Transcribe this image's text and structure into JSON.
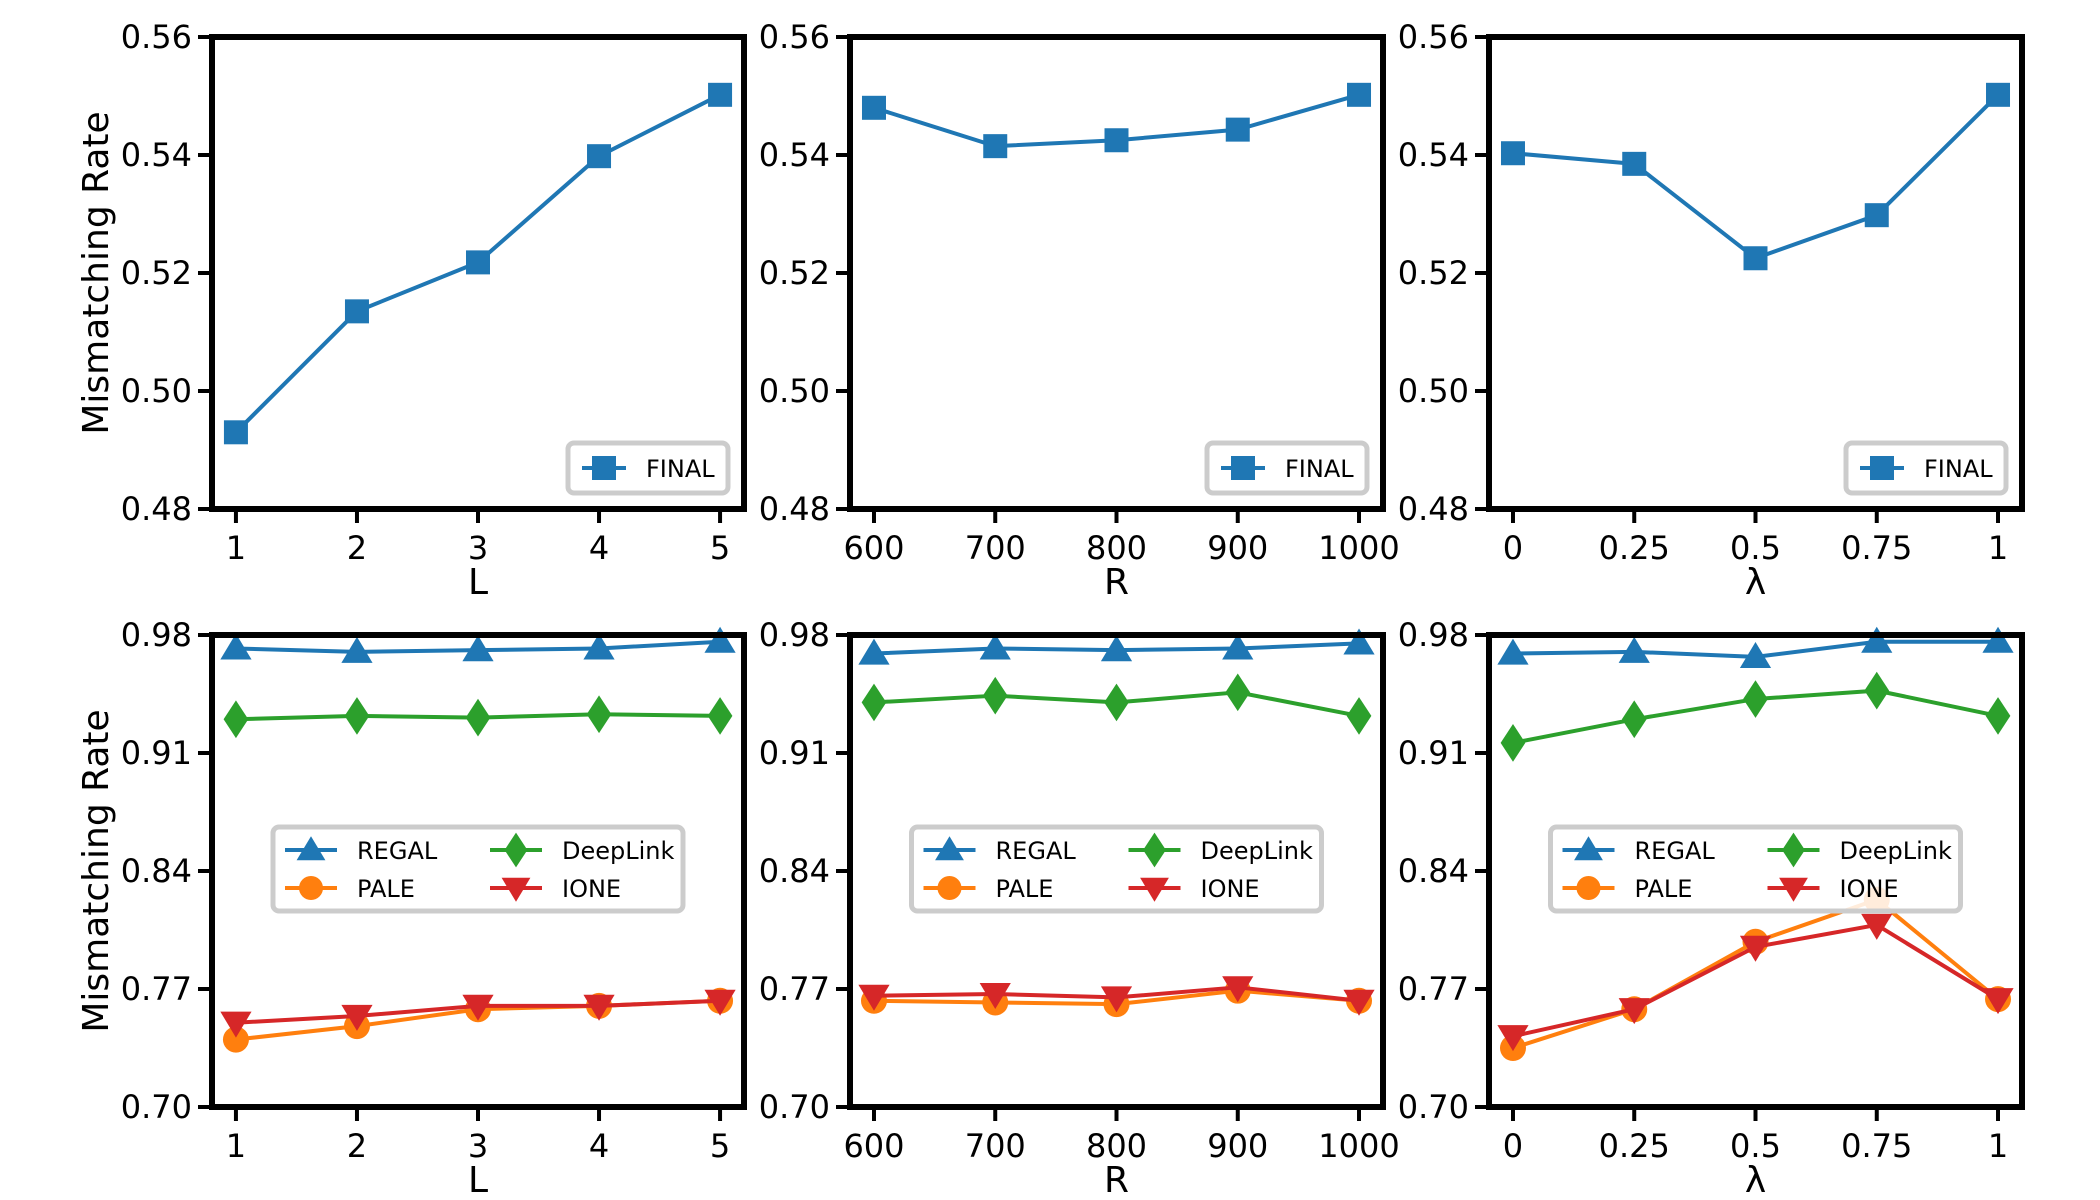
{
  "chart_data": [
    {
      "type": "line",
      "xlabel": "L",
      "ylabel": "Mismatching Rate",
      "categories": [
        "1",
        "2",
        "3",
        "4",
        "5"
      ],
      "ylim": [
        0.48,
        0.56
      ],
      "yticks": [
        "0.48",
        "0.50",
        "0.52",
        "0.54",
        "0.56"
      ],
      "legend": {
        "placement": "lower-right",
        "columns": 1
      },
      "series": [
        {
          "name": "FINAL",
          "color": "#1f77b4",
          "marker": "square",
          "values": [
            0.493,
            0.5135,
            0.5218,
            0.5398,
            0.5502
          ]
        }
      ]
    },
    {
      "type": "line",
      "xlabel": "R",
      "ylabel": "",
      "categories": [
        "600",
        "700",
        "800",
        "900",
        "1000"
      ],
      "ylim": [
        0.48,
        0.56
      ],
      "yticks": [
        "0.48",
        "0.50",
        "0.52",
        "0.54",
        "0.56"
      ],
      "legend": {
        "placement": "lower-right",
        "columns": 1
      },
      "series": [
        {
          "name": "FINAL",
          "color": "#1f77b4",
          "marker": "square",
          "values": [
            0.548,
            0.5415,
            0.5425,
            0.5443,
            0.5502
          ]
        }
      ]
    },
    {
      "type": "line",
      "xlabel": "λ",
      "ylabel": "",
      "categories": [
        "0",
        "0.25",
        "0.5",
        "0.75",
        "1"
      ],
      "ylim": [
        0.48,
        0.56
      ],
      "yticks": [
        "0.48",
        "0.50",
        "0.52",
        "0.54",
        "0.56"
      ],
      "legend": {
        "placement": "lower-right",
        "columns": 1
      },
      "series": [
        {
          "name": "FINAL",
          "color": "#1f77b4",
          "marker": "square",
          "values": [
            0.5403,
            0.5385,
            0.5225,
            0.5298,
            0.5502
          ]
        }
      ]
    },
    {
      "type": "line",
      "xlabel": "L",
      "ylabel": "Mismatching Rate",
      "categories": [
        "1",
        "2",
        "3",
        "4",
        "5"
      ],
      "ylim": [
        0.7,
        0.98
      ],
      "yticks": [
        "0.70",
        "0.77",
        "0.84",
        "0.91",
        "0.98"
      ],
      "legend": {
        "placement": "center",
        "columns": 2
      },
      "series": [
        {
          "name": "REGAL",
          "color": "#1f77b4",
          "marker": "triangle-up",
          "values": [
            0.972,
            0.97,
            0.971,
            0.972,
            0.976
          ]
        },
        {
          "name": "PALE",
          "color": "#ff7f0e",
          "marker": "circle",
          "values": [
            0.74,
            0.748,
            0.758,
            0.76,
            0.763
          ]
        },
        {
          "name": "DeepLink",
          "color": "#2ca02c",
          "marker": "diamond",
          "values": [
            0.93,
            0.932,
            0.931,
            0.933,
            0.932
          ]
        },
        {
          "name": "IONE",
          "color": "#d62728",
          "marker": "triangle-down",
          "values": [
            0.75,
            0.754,
            0.76,
            0.76,
            0.763
          ]
        }
      ]
    },
    {
      "type": "line",
      "xlabel": "R",
      "ylabel": "",
      "categories": [
        "600",
        "700",
        "800",
        "900",
        "1000"
      ],
      "ylim": [
        0.7,
        0.98
      ],
      "yticks": [
        "0.70",
        "0.77",
        "0.84",
        "0.91",
        "0.98"
      ],
      "legend": {
        "placement": "center",
        "columns": 2
      },
      "series": [
        {
          "name": "REGAL",
          "color": "#1f77b4",
          "marker": "triangle-up",
          "values": [
            0.969,
            0.972,
            0.971,
            0.972,
            0.975
          ]
        },
        {
          "name": "PALE",
          "color": "#ff7f0e",
          "marker": "circle",
          "values": [
            0.763,
            0.762,
            0.761,
            0.769,
            0.763
          ]
        },
        {
          "name": "DeepLink",
          "color": "#2ca02c",
          "marker": "diamond",
          "values": [
            0.94,
            0.944,
            0.94,
            0.946,
            0.932
          ]
        },
        {
          "name": "IONE",
          "color": "#d62728",
          "marker": "triangle-down",
          "values": [
            0.766,
            0.767,
            0.765,
            0.771,
            0.763
          ]
        }
      ]
    },
    {
      "type": "line",
      "xlabel": "λ",
      "ylabel": "",
      "categories": [
        "0",
        "0.25",
        "0.5",
        "0.75",
        "1"
      ],
      "ylim": [
        0.7,
        0.98
      ],
      "yticks": [
        "0.70",
        "0.77",
        "0.84",
        "0.91",
        "0.98"
      ],
      "legend": {
        "placement": "center",
        "columns": 2
      },
      "series": [
        {
          "name": "REGAL",
          "color": "#1f77b4",
          "marker": "triangle-up",
          "values": [
            0.969,
            0.97,
            0.967,
            0.976,
            0.976
          ]
        },
        {
          "name": "PALE",
          "color": "#ff7f0e",
          "marker": "circle",
          "values": [
            0.735,
            0.758,
            0.798,
            0.823,
            0.764
          ]
        },
        {
          "name": "DeepLink",
          "color": "#2ca02c",
          "marker": "diamond",
          "values": [
            0.916,
            0.93,
            0.942,
            0.947,
            0.932
          ]
        },
        {
          "name": "IONE",
          "color": "#d62728",
          "marker": "triangle-down",
          "values": [
            0.742,
            0.758,
            0.795,
            0.808,
            0.764
          ]
        }
      ]
    }
  ]
}
